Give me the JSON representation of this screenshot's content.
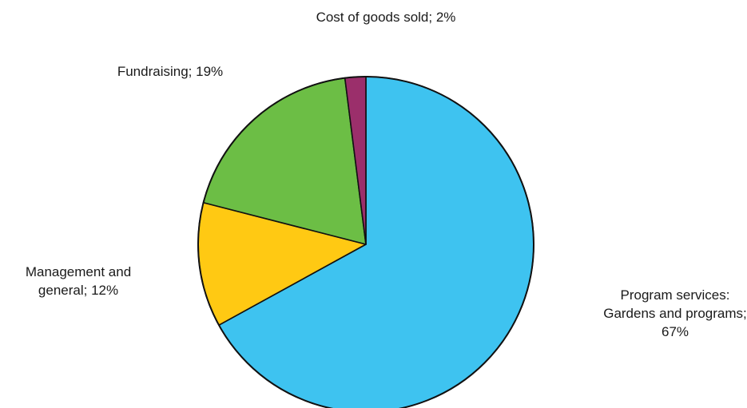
{
  "chart_data": {
    "type": "pie",
    "title": "",
    "start": "12 o'clock",
    "direction": "clockwise",
    "slices": [
      {
        "label": "Program services: Gardens and programs",
        "value": 67,
        "color": "#3EC3F0",
        "text_lines": [
          "Program services:",
          "Gardens and programs;",
          "67%"
        ]
      },
      {
        "label": "Management and general",
        "value": 12,
        "color": "#FFC913",
        "text_lines": [
          "Management and",
          "general; 12%"
        ]
      },
      {
        "label": "Fundraising",
        "value": 19,
        "color": "#6CBE45",
        "text_lines": [
          "Fundraising; 19%"
        ]
      },
      {
        "label": "Cost of goods sold",
        "value": 2,
        "color": "#9B2F6B",
        "text_lines": [
          "Cost of goods sold; 2%"
        ]
      }
    ]
  }
}
